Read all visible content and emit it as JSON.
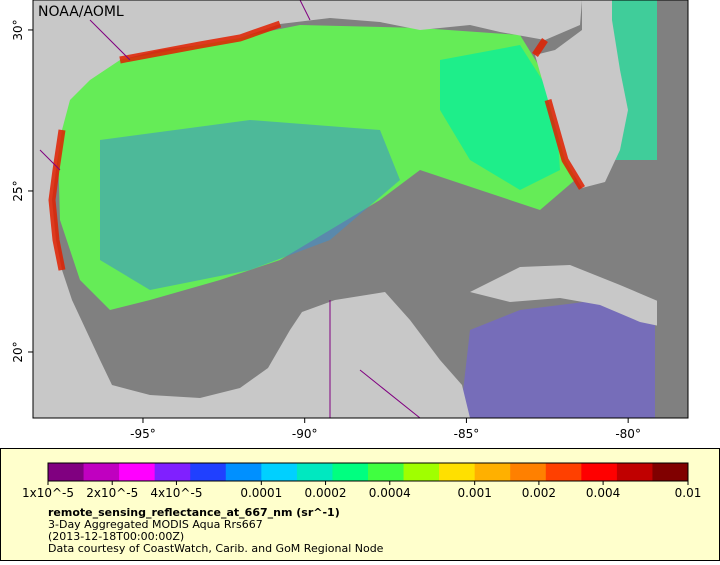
{
  "map": {
    "credit": "NOAA/AOML",
    "xlim": [
      -98.4,
      -78.15
    ],
    "ylim": [
      17.95,
      30.93
    ],
    "xticks": [
      {
        "value": -95,
        "label": "-95°"
      },
      {
        "value": -90,
        "label": "-90°"
      },
      {
        "value": -85,
        "label": "-85°"
      },
      {
        "value": -80,
        "label": "-80°"
      }
    ],
    "yticks": [
      {
        "value": 20,
        "label": "20°"
      },
      {
        "value": 25,
        "label": "25°"
      },
      {
        "value": 30,
        "label": "30°"
      }
    ]
  },
  "colorbar": {
    "scale": "log",
    "lim": [
      1e-05,
      0.01
    ],
    "colors": [
      "#800080",
      "#c000c0",
      "#ff00ff",
      "#8020ff",
      "#2040ff",
      "#0090ff",
      "#00d0ff",
      "#00e8c0",
      "#00ff80",
      "#40ff40",
      "#a0ff00",
      "#ffe000",
      "#ffb000",
      "#ff8000",
      "#ff4000",
      "#ff0000",
      "#c00000",
      "#800000"
    ],
    "ticks": [
      {
        "value": 1e-05,
        "label": "1x10^-5"
      },
      {
        "value": 2e-05,
        "label": "2x10^-5"
      },
      {
        "value": 4e-05,
        "label": "4x10^-5"
      },
      0.0001,
      0.0002,
      0.0004,
      0.001,
      0.002,
      0.004,
      0.01
    ]
  },
  "caption": {
    "variable": "remote_sensing_reflectance_at_667_nm (sr^-1)",
    "line1": "3-Day Aggregated MODIS Aqua Rrs667",
    "line2": "(2013-12-18T00:00:00Z)",
    "line3": "Data courtesy of CoastWatch, Carib. and GoM Regional Node"
  }
}
